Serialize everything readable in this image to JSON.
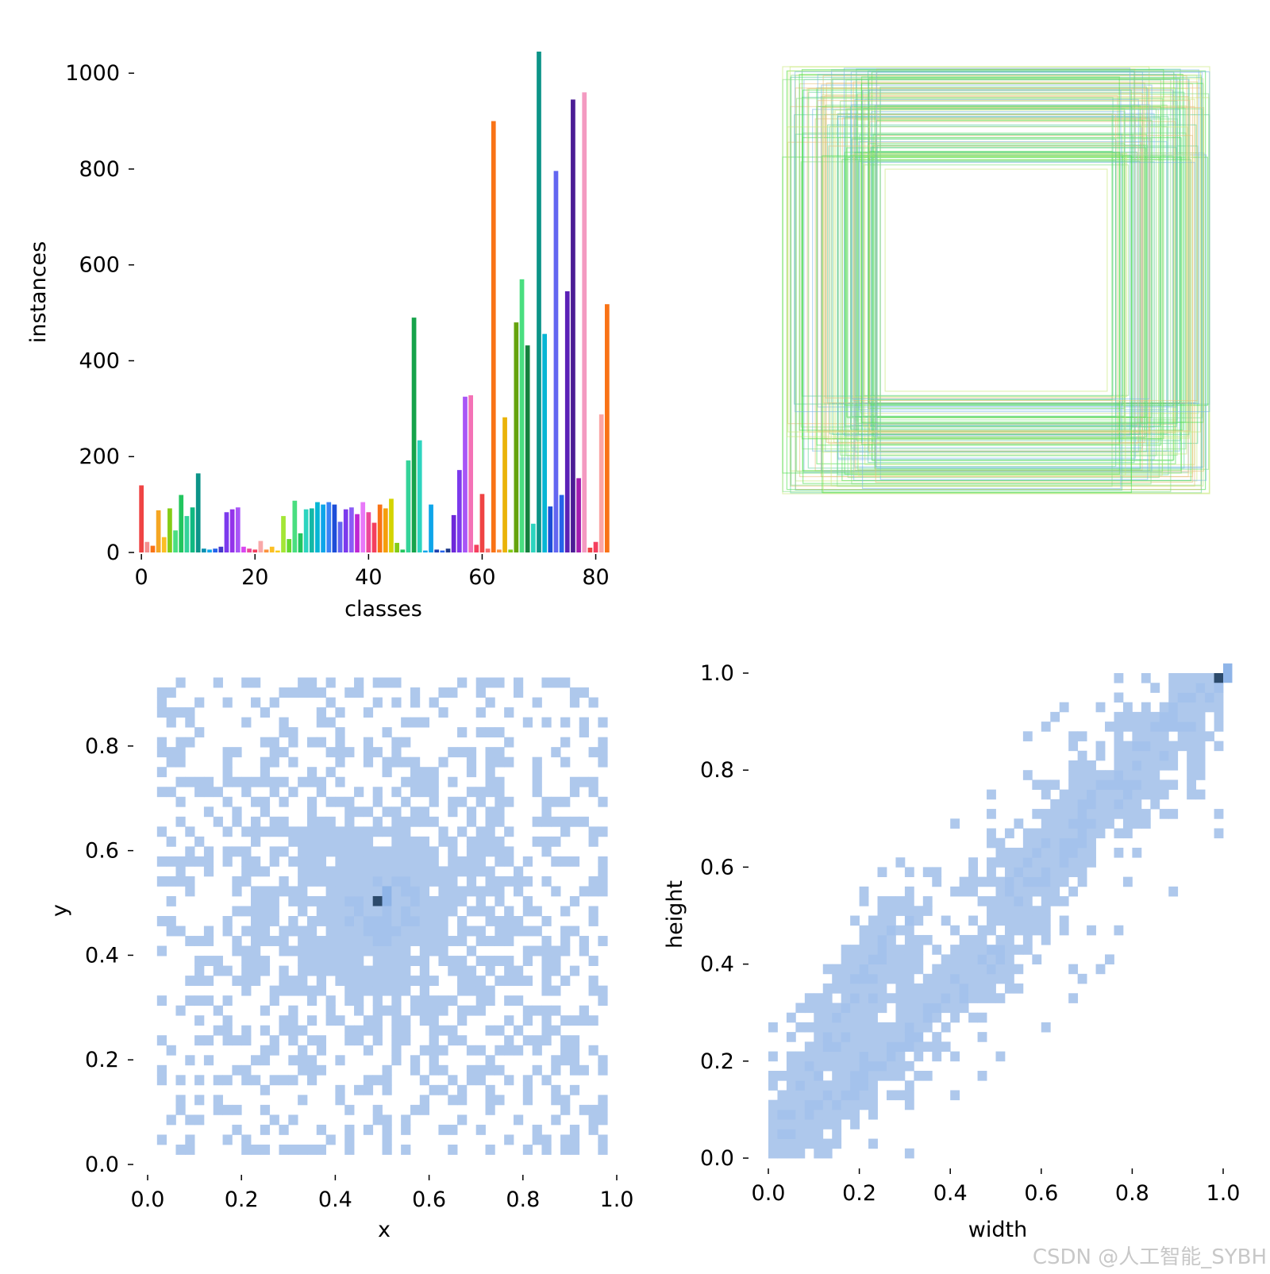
{
  "colors": {
    "bin": "#aec8ec",
    "bin_mid": "#8fb5e8",
    "bin_dark": "#2c4a6b",
    "axis": "#000000",
    "box_palette": [
      "#4ade4a",
      "#7fe07f",
      "#c8e87a",
      "#e8c07a",
      "#7ab8e8",
      "#5ccf9a"
    ]
  },
  "chart_data": [
    {
      "type": "bar",
      "title": "",
      "xlabel": "classes",
      "ylabel": "instances",
      "xlim": [
        -1,
        83
      ],
      "ylim": [
        0,
        1050
      ],
      "xticks": [
        "0",
        "20",
        "40",
        "60",
        "80"
      ],
      "xtick_values": [
        0,
        20,
        40,
        60,
        80
      ],
      "yticks": [
        "0",
        "200",
        "400",
        "600",
        "800",
        "1000"
      ],
      "ytick_values": [
        0,
        200,
        400,
        600,
        800,
        1000
      ],
      "categories": [
        0,
        1,
        2,
        3,
        4,
        5,
        6,
        7,
        8,
        9,
        10,
        11,
        12,
        13,
        14,
        15,
        16,
        17,
        18,
        19,
        20,
        21,
        22,
        23,
        24,
        25,
        26,
        27,
        28,
        29,
        30,
        31,
        32,
        33,
        34,
        35,
        36,
        37,
        38,
        39,
        40,
        41,
        42,
        43,
        44,
        45,
        46,
        47,
        48,
        49,
        50,
        51,
        52,
        53,
        54,
        55,
        56,
        57,
        58,
        59,
        60,
        61,
        62,
        63,
        64,
        65,
        66,
        67,
        68,
        69,
        70,
        71,
        72,
        73,
        74,
        75,
        76,
        77,
        78,
        79,
        80,
        81,
        82
      ],
      "values": [
        140,
        22,
        14,
        88,
        32,
        92,
        46,
        120,
        76,
        94,
        165,
        8,
        6,
        8,
        12,
        84,
        90,
        94,
        12,
        8,
        6,
        24,
        6,
        12,
        4,
        76,
        28,
        108,
        40,
        90,
        92,
        105,
        100,
        105,
        100,
        64,
        90,
        94,
        80,
        105,
        84,
        62,
        100,
        92,
        112,
        20,
        6,
        192,
        490,
        234,
        4,
        100,
        6,
        4,
        8,
        78,
        172,
        325,
        328,
        16,
        122,
        8,
        900,
        6,
        282,
        6,
        480,
        570,
        432,
        60,
        1045,
        456,
        96,
        796,
        120,
        545,
        945,
        155,
        960,
        10,
        22,
        288,
        518
      ],
      "colors": [
        "#ef4444",
        "#f48f8f",
        "#f97316",
        "#f5a623",
        "#fbbf24",
        "#84cc16",
        "#4ade80",
        "#22c55e",
        "#34d399",
        "#10b981",
        "#0d9488",
        "#0891b2",
        "#0ea5e9",
        "#2563eb",
        "#4338ca",
        "#7c3aed",
        "#9333ea",
        "#a855f7",
        "#d946ef",
        "#ec4899",
        "#f43f5e",
        "#f9a8a8",
        "#fb923c",
        "#fbbf24",
        "#facc15",
        "#a3e635",
        "#65d830",
        "#4ade80",
        "#22c55e",
        "#2dd4bf",
        "#14b8a6",
        "#06b6d4",
        "#0ea5e9",
        "#3b82f6",
        "#1d4ed8",
        "#6366f1",
        "#7c3aed",
        "#8b5cf6",
        "#c026d3",
        "#e879f9",
        "#ec4899",
        "#f43f5e",
        "#f97316",
        "#f59e0b",
        "#d4d400",
        "#84cc16",
        "#22c55e",
        "#34d399",
        "#16a34a",
        "#2dd4bf",
        "#0ea5e9",
        "#0ea5e9",
        "#1e40af",
        "#2563eb",
        "#1e3a8a",
        "#6d28d9",
        "#7c3aed",
        "#a855f7",
        "#f472b6",
        "#f43f5e",
        "#ef4444",
        "#f87171",
        "#f97316",
        "#fb923c",
        "#eab308",
        "#84cc16",
        "#65a30d",
        "#4ade80",
        "#15803d",
        "#2dd4bf",
        "#0d9488",
        "#06b6d4",
        "#1d4ed8",
        "#6366f1",
        "#2563eb",
        "#5b21b6",
        "#4c1d95",
        "#a21caf",
        "#f49ac1",
        "#ef4444",
        "#f43f5e",
        "#fca5a5",
        "#f97316"
      ]
    },
    {
      "type": "box_overlay",
      "title": "",
      "description_boxes": [
        [
          0.01,
          0.01,
          0.99,
          0.99
        ],
        [
          0.02,
          0.02,
          0.98,
          0.98
        ],
        [
          0.03,
          0.02,
          0.97,
          0.97
        ],
        [
          0.04,
          0.04,
          0.96,
          0.96
        ],
        [
          0.05,
          0.03,
          0.95,
          0.95
        ],
        [
          0.06,
          0.06,
          0.94,
          0.94
        ],
        [
          0.08,
          0.05,
          0.92,
          0.93
        ],
        [
          0.1,
          0.09,
          0.9,
          0.9
        ],
        [
          0.12,
          0.1,
          0.88,
          0.88
        ],
        [
          0.14,
          0.12,
          0.86,
          0.86
        ],
        [
          0.16,
          0.14,
          0.84,
          0.84
        ],
        [
          0.18,
          0.16,
          0.82,
          0.82
        ],
        [
          0.2,
          0.18,
          0.8,
          0.8
        ],
        [
          0.22,
          0.22,
          0.78,
          0.78
        ],
        [
          0.0,
          0.0,
          1.0,
          1.0
        ],
        [
          0.03,
          0.05,
          0.98,
          0.99
        ],
        [
          0.07,
          0.1,
          0.93,
          0.9
        ],
        [
          0.11,
          0.14,
          0.9,
          0.86
        ],
        [
          0.15,
          0.19,
          0.85,
          0.82
        ],
        [
          0.19,
          0.23,
          0.81,
          0.77
        ],
        [
          0.24,
          0.24,
          0.76,
          0.76
        ],
        [
          0.09,
          0.07,
          0.95,
          0.96
        ],
        [
          0.13,
          0.11,
          0.87,
          0.92
        ],
        [
          0.17,
          0.2,
          0.83,
          0.84
        ]
      ]
    },
    {
      "type": "heatmap",
      "title": "",
      "xlabel": "x",
      "ylabel": "y",
      "xlim": [
        0,
        1
      ],
      "ylim": [
        0,
        0.95
      ],
      "xticks": [
        "0.0",
        "0.2",
        "0.4",
        "0.6",
        "0.8",
        "1.0"
      ],
      "xtick_values": [
        0,
        0.2,
        0.4,
        0.6,
        0.8,
        1.0
      ],
      "yticks": [
        "0.0",
        "0.2",
        "0.4",
        "0.6",
        "0.8"
      ],
      "ytick_values": [
        0,
        0.2,
        0.4,
        0.6,
        0.8
      ],
      "bins": 50,
      "peak": [
        0.495,
        0.505
      ],
      "center": [
        0.5,
        0.49
      ],
      "spread": [
        0.2,
        0.17
      ]
    },
    {
      "type": "heatmap",
      "title": "",
      "xlabel": "width",
      "ylabel": "height",
      "xlim": [
        0,
        1
      ],
      "ylim": [
        0,
        1
      ],
      "xticks": [
        "0.0",
        "0.2",
        "0.4",
        "0.6",
        "0.8",
        "1.0"
      ],
      "xtick_values": [
        0,
        0.2,
        0.4,
        0.6,
        0.8,
        1.0
      ],
      "yticks": [
        "0.0",
        "0.2",
        "0.4",
        "0.6",
        "0.8",
        "1.0"
      ],
      "ytick_values": [
        0,
        0.2,
        0.4,
        0.6,
        0.8,
        1.0
      ],
      "bins": 50,
      "peak": [
        0.99,
        0.99
      ],
      "bands": [
        {
          "from": [
            0.02,
            0.02
          ],
          "to": [
            0.3,
            0.5
          ],
          "width": 0.06
        },
        {
          "from": [
            0.02,
            0.02
          ],
          "to": [
            0.5,
            0.42
          ],
          "width": 0.05
        },
        {
          "from": [
            0.55,
            0.55
          ],
          "to": [
            1.0,
            1.0
          ],
          "width": 0.07
        }
      ]
    }
  ],
  "watermark": "CSDN @人工智能_SYBH"
}
